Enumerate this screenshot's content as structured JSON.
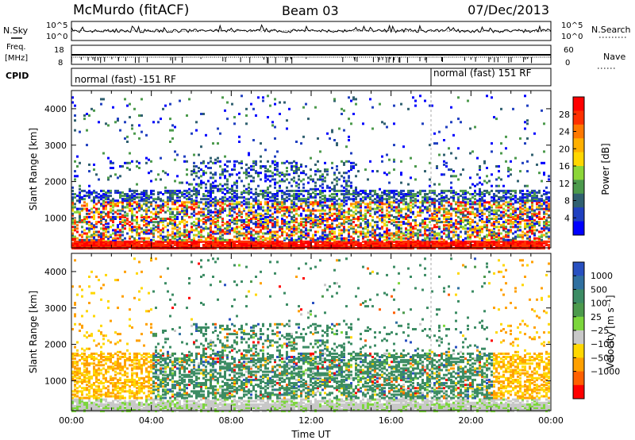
{
  "header": {
    "station": "McMurdo (fitACF)",
    "beam": "Beam 03",
    "date": "07/Dec/2013"
  },
  "side_labels": {
    "nsky": "N.Sky",
    "freq_line1": "Freq.",
    "freq_line2": "[MHz]",
    "cpid": "CPID",
    "nsearch": "N.Search",
    "nave": "Nave"
  },
  "cpid_programs": [
    {
      "label": "normal (fast) -151 RF",
      "start_hour": 0
    },
    {
      "label": "normal (fast) 151 RF",
      "start_hour": 18
    }
  ],
  "chart_data": [
    {
      "type": "line",
      "name": "noise-panel",
      "yticks_left": [
        "10^5",
        "10^0"
      ],
      "yticks_right": [
        "10^5",
        "10^0"
      ]
    },
    {
      "type": "line",
      "name": "frequency-nave-panel",
      "yticks_left": [
        18,
        8
      ],
      "yticks_right": [
        60,
        0
      ]
    },
    {
      "type": "heatmap",
      "name": "power-panel",
      "ylabel": "Slant Range [km]",
      "ylim": [
        180,
        4500
      ],
      "yticks": [
        1000,
        2000,
        3000,
        4000
      ],
      "xlim": [
        0,
        24
      ],
      "colorbar": {
        "label": "Power [dB]",
        "ticks": [
          4,
          8,
          12,
          16,
          20,
          24,
          28
        ],
        "colors": [
          "#0000ff",
          "#2040c0",
          "#306070",
          "#4c9a4c",
          "#8cd638",
          "#ffd700",
          "#ffb000",
          "#ff7800",
          "#ff3000",
          "#ff0000"
        ]
      }
    },
    {
      "type": "heatmap",
      "name": "velocity-panel",
      "xlabel": "Time UT",
      "ylabel": "Slant Range [km]",
      "ylim": [
        180,
        4500
      ],
      "yticks": [
        1000,
        2000,
        3000,
        4000
      ],
      "xlim": [
        0,
        24
      ],
      "xticks": [
        "00:00",
        "04:00",
        "08:00",
        "12:00",
        "16:00",
        "20:00",
        "00:00"
      ],
      "colorbar": {
        "label": "Velocity [m s⁻¹]",
        "ticks": [
          "1000",
          "500",
          "100",
          "25",
          "−25",
          "−100",
          "−500",
          "−1000"
        ],
        "colors": [
          "#2850c0",
          "#3070a0",
          "#3c8c64",
          "#4c9a4c",
          "#7cd63c",
          "#c8c8c8",
          "#ffd700",
          "#ffa000",
          "#ff6000",
          "#ff0000"
        ]
      }
    }
  ]
}
